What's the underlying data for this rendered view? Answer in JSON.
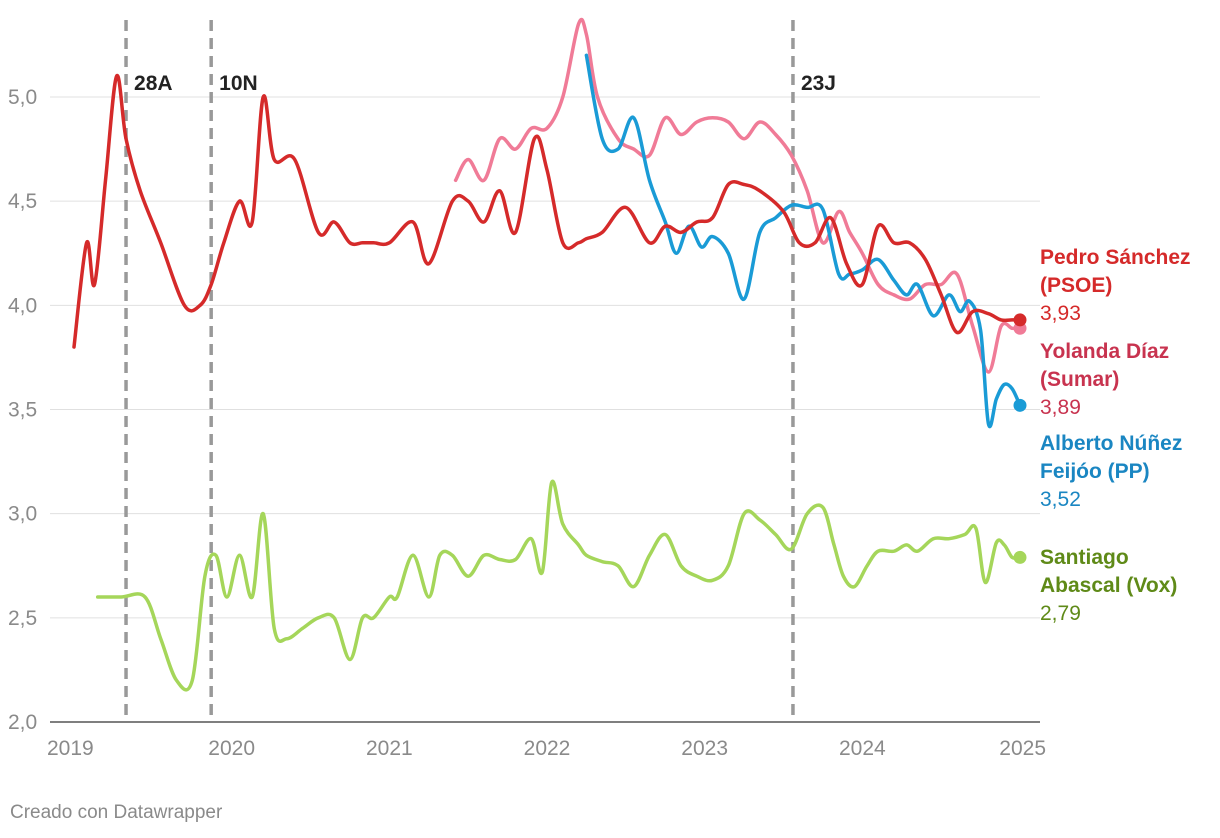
{
  "chart_data": {
    "type": "line",
    "xlim": [
      2019,
      2025
    ],
    "ylim": [
      2.0,
      5.0
    ],
    "y_ticks": [
      "2,0",
      "2,5",
      "3,0",
      "3,5",
      "4,0",
      "4,5",
      "5,0"
    ],
    "x_ticks": [
      "2019",
      "2020",
      "2021",
      "2022",
      "2023",
      "2024",
      "2025"
    ],
    "grid": true,
    "events": [
      {
        "label": "28A",
        "x": 2019.33
      },
      {
        "label": "10N",
        "x": 2019.87
      },
      {
        "label": "23J",
        "x": 2023.56
      }
    ],
    "series": [
      {
        "name_line1": "Pedro Sánchez",
        "name_line2": "(PSOE)",
        "last_value": "3,93",
        "color": "#d52a2a",
        "x": [
          2019.0,
          2019.08,
          2019.13,
          2019.2,
          2019.27,
          2019.33,
          2019.42,
          2019.55,
          2019.7,
          2019.8,
          2019.87,
          2019.95,
          2020.05,
          2020.13,
          2020.2,
          2020.27,
          2020.4,
          2020.55,
          2020.65,
          2020.75,
          2020.83,
          2020.9,
          2021.0,
          2021.15,
          2021.25,
          2021.4,
          2021.5,
          2021.6,
          2021.7,
          2021.8,
          2021.92,
          2022.0,
          2022.1,
          2022.2,
          2022.25,
          2022.35,
          2022.5,
          2022.65,
          2022.75,
          2022.85,
          2022.95,
          2023.05,
          2023.15,
          2023.25,
          2023.35,
          2023.5,
          2023.6,
          2023.7,
          2023.8,
          2023.9,
          2024.0,
          2024.1,
          2024.2,
          2024.3,
          2024.4,
          2024.5,
          2024.6,
          2024.7,
          2024.8,
          2024.88,
          2024.95,
          2025.0
        ],
        "y": [
          3.8,
          4.3,
          4.1,
          4.6,
          5.1,
          4.8,
          4.55,
          4.3,
          4.0,
          4.0,
          4.1,
          4.3,
          4.5,
          4.4,
          5.0,
          4.7,
          4.7,
          4.35,
          4.4,
          4.3,
          4.3,
          4.3,
          4.3,
          4.4,
          4.2,
          4.5,
          4.5,
          4.4,
          4.55,
          4.35,
          4.8,
          4.65,
          4.3,
          4.3,
          4.32,
          4.35,
          4.47,
          4.3,
          4.38,
          4.35,
          4.4,
          4.42,
          4.58,
          4.58,
          4.55,
          4.45,
          4.3,
          4.3,
          4.42,
          4.2,
          4.1,
          4.38,
          4.3,
          4.3,
          4.22,
          4.05,
          3.87,
          3.97,
          3.96,
          3.93,
          3.93,
          3.93
        ]
      },
      {
        "name_line1": "Yolanda Díaz",
        "name_line2": "(Sumar)",
        "last_value": "3,89",
        "color": "#f07b97",
        "label_color": "#c8334f",
        "x": [
          2021.42,
          2021.5,
          2021.6,
          2021.7,
          2021.8,
          2021.9,
          2022.0,
          2022.1,
          2022.2,
          2022.25,
          2022.32,
          2022.45,
          2022.55,
          2022.65,
          2022.75,
          2022.85,
          2022.95,
          2023.05,
          2023.15,
          2023.25,
          2023.35,
          2023.45,
          2023.55,
          2023.65,
          2023.75,
          2023.85,
          2023.92,
          2024.0,
          2024.1,
          2024.2,
          2024.3,
          2024.4,
          2024.5,
          2024.6,
          2024.7,
          2024.8,
          2024.88,
          2024.95,
          2025.0
        ],
        "y": [
          4.6,
          4.7,
          4.6,
          4.8,
          4.75,
          4.85,
          4.85,
          5.0,
          5.35,
          5.3,
          5.0,
          4.8,
          4.75,
          4.72,
          4.9,
          4.82,
          4.88,
          4.9,
          4.88,
          4.8,
          4.88,
          4.82,
          4.72,
          4.55,
          4.3,
          4.45,
          4.35,
          4.25,
          4.1,
          4.05,
          4.03,
          4.1,
          4.1,
          4.15,
          3.9,
          3.68,
          3.9,
          3.89,
          3.89
        ]
      },
      {
        "name_line1": "Alberto Núñez",
        "name_line2": "Feijóo (PP)",
        "last_value": "3,52",
        "color": "#1a9bd6",
        "label_color": "#1a86c2",
        "x": [
          2022.25,
          2022.35,
          2022.45,
          2022.55,
          2022.65,
          2022.75,
          2022.82,
          2022.9,
          2022.98,
          2023.05,
          2023.15,
          2023.25,
          2023.35,
          2023.45,
          2023.55,
          2023.65,
          2023.75,
          2023.85,
          2023.92,
          2024.0,
          2024.1,
          2024.2,
          2024.28,
          2024.35,
          2024.45,
          2024.55,
          2024.62,
          2024.68,
          2024.75,
          2024.8,
          2024.85,
          2024.9,
          2024.95,
          2025.0
        ],
        "y": [
          5.2,
          4.8,
          4.75,
          4.9,
          4.6,
          4.4,
          4.25,
          4.38,
          4.28,
          4.33,
          4.25,
          4.03,
          4.35,
          4.42,
          4.48,
          4.47,
          4.46,
          4.15,
          4.15,
          4.17,
          4.22,
          4.12,
          4.05,
          4.1,
          3.95,
          4.05,
          3.97,
          4.02,
          3.88,
          3.43,
          3.55,
          3.62,
          3.6,
          3.52
        ]
      },
      {
        "name_line1": "Santiago",
        "name_line2": "Abascal (Vox)",
        "last_value": "2,79",
        "color": "#a5d65a",
        "label_color": "#5f8a18",
        "x": [
          2019.15,
          2019.3,
          2019.45,
          2019.55,
          2019.65,
          2019.75,
          2019.83,
          2019.9,
          2019.97,
          2020.05,
          2020.13,
          2020.2,
          2020.27,
          2020.35,
          2020.45,
          2020.55,
          2020.65,
          2020.75,
          2020.83,
          2020.9,
          2021.0,
          2021.05,
          2021.15,
          2021.25,
          2021.32,
          2021.4,
          2021.5,
          2021.6,
          2021.7,
          2021.8,
          2021.9,
          2021.97,
          2022.03,
          2022.1,
          2022.2,
          2022.25,
          2022.35,
          2022.45,
          2022.55,
          2022.65,
          2022.75,
          2022.85,
          2022.95,
          2023.05,
          2023.15,
          2023.25,
          2023.35,
          2023.45,
          2023.55,
          2023.65,
          2023.75,
          2023.82,
          2023.88,
          2023.95,
          2024.03,
          2024.1,
          2024.2,
          2024.28,
          2024.35,
          2024.45,
          2024.55,
          2024.65,
          2024.72,
          2024.78,
          2024.85,
          2024.9,
          2024.95,
          2025.0
        ],
        "y": [
          2.6,
          2.6,
          2.6,
          2.4,
          2.2,
          2.2,
          2.7,
          2.8,
          2.6,
          2.8,
          2.6,
          3.0,
          2.45,
          2.4,
          2.45,
          2.5,
          2.5,
          2.3,
          2.5,
          2.5,
          2.6,
          2.6,
          2.8,
          2.6,
          2.8,
          2.8,
          2.7,
          2.8,
          2.78,
          2.78,
          2.88,
          2.72,
          3.15,
          2.95,
          2.85,
          2.8,
          2.77,
          2.75,
          2.65,
          2.8,
          2.9,
          2.75,
          2.7,
          2.68,
          2.75,
          3.0,
          2.97,
          2.9,
          2.83,
          3.0,
          3.03,
          2.85,
          2.7,
          2.65,
          2.75,
          2.82,
          2.82,
          2.85,
          2.82,
          2.88,
          2.88,
          2.9,
          2.93,
          2.67,
          2.86,
          2.85,
          2.79,
          2.79
        ]
      }
    ]
  },
  "credit": "Creado con Datawrapper"
}
